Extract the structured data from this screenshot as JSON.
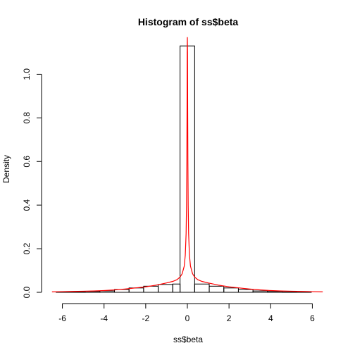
{
  "chart_data": {
    "type": "histogram",
    "title": "Histogram of ss$beta",
    "xlabel": "ss$beta",
    "ylabel": "Density",
    "xlim": [
      -7,
      7
    ],
    "ylim": [
      0,
      1.15
    ],
    "x_ticks": [
      -6,
      -4,
      -2,
      0,
      2,
      4,
      6
    ],
    "x_tick_labels": [
      "-6",
      "-4",
      "-2",
      "0",
      "2",
      "4",
      "6"
    ],
    "y_ticks": [
      0.0,
      0.2,
      0.4,
      0.6,
      0.8,
      1.0
    ],
    "y_tick_labels": [
      "0.0",
      "0.2",
      "0.4",
      "0.6",
      "0.8",
      "1.0"
    ],
    "bin_width": 0.7,
    "bins": [
      {
        "x0": -7.0,
        "x1": -6.3,
        "density": 0.0
      },
      {
        "x0": -6.3,
        "x1": -5.6,
        "density": 0.001
      },
      {
        "x0": -5.6,
        "x1": -4.9,
        "density": 0.002
      },
      {
        "x0": -4.9,
        "x1": -4.2,
        "density": 0.004
      },
      {
        "x0": -4.2,
        "x1": -3.5,
        "density": 0.006
      },
      {
        "x0": -3.5,
        "x1": -2.8,
        "density": 0.013
      },
      {
        "x0": -2.8,
        "x1": -2.1,
        "density": 0.02
      },
      {
        "x0": -2.1,
        "x1": -1.4,
        "density": 0.028
      },
      {
        "x0": -1.4,
        "x1": -0.7,
        "density": 0.036
      },
      {
        "x0": -0.7,
        "x1": -0.35,
        "density": 0.038
      },
      {
        "x0": -0.35,
        "x1": 0.35,
        "density": 1.13
      },
      {
        "x0": 0.35,
        "x1": 1.05,
        "density": 0.038
      },
      {
        "x0": 1.05,
        "x1": 1.75,
        "density": 0.028
      },
      {
        "x0": 1.75,
        "x1": 2.45,
        "density": 0.02
      },
      {
        "x0": 2.45,
        "x1": 3.15,
        "density": 0.013
      },
      {
        "x0": 3.15,
        "x1": 3.85,
        "density": 0.006
      },
      {
        "x0": 3.85,
        "x1": 4.55,
        "density": 0.004
      },
      {
        "x0": 4.55,
        "x1": 5.25,
        "density": 0.002
      },
      {
        "x0": 5.25,
        "x1": 5.95,
        "density": 0.001
      },
      {
        "x0": 5.95,
        "x1": 6.65,
        "density": 0.0
      },
      {
        "x0": 6.65,
        "x1": 7.0,
        "density": 0.0
      }
    ],
    "overlay": {
      "color": "#ff0000",
      "shape": "sharp peak at 0 with heavy tails",
      "points": [
        [
          -6.5,
          0.002
        ],
        [
          -6.0,
          0.003
        ],
        [
          -5.5,
          0.004
        ],
        [
          -5.0,
          0.005
        ],
        [
          -4.5,
          0.006
        ],
        [
          -4.0,
          0.008
        ],
        [
          -3.5,
          0.011
        ],
        [
          -3.0,
          0.015
        ],
        [
          -2.5,
          0.02
        ],
        [
          -2.0,
          0.025
        ],
        [
          -1.5,
          0.033
        ],
        [
          -1.0,
          0.043
        ],
        [
          -0.7,
          0.05
        ],
        [
          -0.5,
          0.058
        ],
        [
          -0.35,
          0.07
        ],
        [
          -0.25,
          0.085
        ],
        [
          -0.15,
          0.12
        ],
        [
          -0.1,
          0.17
        ],
        [
          -0.06,
          0.27
        ],
        [
          -0.04,
          0.4
        ],
        [
          -0.025,
          0.6
        ],
        [
          -0.015,
          0.85
        ],
        [
          -0.008,
          1.1
        ],
        [
          0.0,
          1.17
        ],
        [
          0.008,
          1.1
        ],
        [
          0.015,
          0.85
        ],
        [
          0.025,
          0.6
        ],
        [
          0.04,
          0.4
        ],
        [
          0.06,
          0.27
        ],
        [
          0.1,
          0.17
        ],
        [
          0.15,
          0.12
        ],
        [
          0.25,
          0.085
        ],
        [
          0.35,
          0.07
        ],
        [
          0.5,
          0.058
        ],
        [
          0.7,
          0.05
        ],
        [
          1.0,
          0.043
        ],
        [
          1.5,
          0.033
        ],
        [
          2.0,
          0.025
        ],
        [
          2.5,
          0.02
        ],
        [
          3.0,
          0.015
        ],
        [
          3.5,
          0.011
        ],
        [
          4.0,
          0.008
        ],
        [
          4.5,
          0.006
        ],
        [
          5.0,
          0.005
        ],
        [
          5.5,
          0.004
        ],
        [
          6.0,
          0.003
        ],
        [
          6.5,
          0.002
        ]
      ]
    }
  }
}
